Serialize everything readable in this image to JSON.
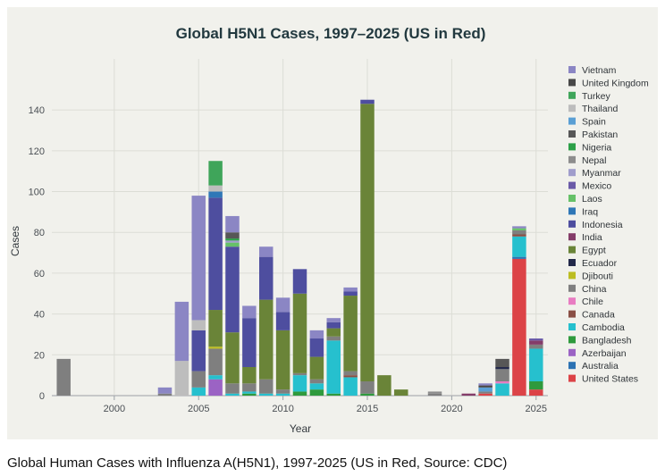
{
  "caption": "Global Human Cases with Influenza A(H5N1), 1997-2025 (US in Red, Source: CDC)",
  "chart_data": {
    "type": "bar",
    "stacked": true,
    "title": "Global H5N1 Cases, 1997–2025 (US in Red)",
    "xlabel": "Year",
    "ylabel": "Cases",
    "xlim": [
      1996.3,
      2025.7
    ],
    "ylim": [
      0,
      165
    ],
    "x_ticks": [
      2000,
      2005,
      2010,
      2015,
      2020,
      2025
    ],
    "y_ticks": [
      0,
      20,
      40,
      60,
      80,
      100,
      120,
      140
    ],
    "grid": true,
    "legend_position": "right",
    "years": [
      1997,
      1998,
      1999,
      2000,
      2001,
      2002,
      2003,
      2004,
      2005,
      2006,
      2007,
      2008,
      2009,
      2010,
      2011,
      2012,
      2013,
      2014,
      2015,
      2016,
      2017,
      2018,
      2019,
      2020,
      2021,
      2022,
      2023,
      2024,
      2025
    ],
    "series": [
      {
        "name": "United States",
        "color": "#dc4347",
        "values": [
          0,
          0,
          0,
          0,
          0,
          0,
          0,
          0,
          0,
          0,
          0,
          0,
          0,
          0,
          0,
          0,
          0,
          0,
          0,
          0,
          0,
          0,
          0,
          0,
          0,
          1,
          0,
          67,
          3
        ]
      },
      {
        "name": "Australia",
        "color": "#2c72b3",
        "values": [
          0,
          0,
          0,
          0,
          0,
          0,
          0,
          0,
          0,
          0,
          0,
          0,
          0,
          0,
          0,
          0,
          0,
          0,
          0,
          0,
          0,
          0,
          0,
          0,
          0,
          0,
          0,
          1,
          0
        ]
      },
      {
        "name": "Azerbaijan",
        "color": "#9b63c4",
        "values": [
          0,
          0,
          0,
          0,
          0,
          0,
          0,
          0,
          0,
          8,
          0,
          0,
          0,
          0,
          0,
          0,
          0,
          0,
          0,
          0,
          0,
          0,
          0,
          0,
          0,
          0,
          0,
          0,
          0
        ]
      },
      {
        "name": "Bangladesh",
        "color": "#2f9a3d",
        "values": [
          0,
          0,
          0,
          0,
          0,
          0,
          0,
          0,
          0,
          0,
          0,
          1,
          0,
          0,
          2,
          3,
          1,
          0,
          1,
          0,
          0,
          0,
          0,
          0,
          0,
          0,
          0,
          0,
          4
        ]
      },
      {
        "name": "Cambodia",
        "color": "#26c0ce",
        "values": [
          0,
          0,
          0,
          0,
          0,
          0,
          0,
          0,
          4,
          2,
          1,
          1,
          1,
          1,
          8,
          3,
          26,
          9,
          0,
          0,
          0,
          0,
          0,
          0,
          0,
          0,
          6,
          10,
          16
        ]
      },
      {
        "name": "Canada",
        "color": "#8a4f45",
        "values": [
          0,
          0,
          0,
          0,
          0,
          0,
          0,
          0,
          0,
          0,
          0,
          0,
          0,
          0,
          0,
          0,
          0,
          1,
          0,
          0,
          0,
          0,
          0,
          0,
          0,
          0,
          0,
          1,
          0
        ]
      },
      {
        "name": "Chile",
        "color": "#e87cc2",
        "values": [
          0,
          0,
          0,
          0,
          0,
          0,
          0,
          0,
          0,
          0,
          0,
          0,
          0,
          0,
          0,
          0,
          0,
          0,
          0,
          0,
          0,
          0,
          0,
          0,
          0,
          0,
          1,
          0,
          0
        ]
      },
      {
        "name": "China",
        "color": "#7f7f7f",
        "values": [
          18,
          0,
          0,
          0,
          0,
          0,
          1,
          0,
          8,
          13,
          5,
          4,
          7,
          2,
          1,
          2,
          2,
          2,
          6,
          0,
          0,
          0,
          1,
          0,
          0,
          1,
          6,
          2,
          2
        ]
      },
      {
        "name": "Djibouti",
        "color": "#bcbd22",
        "values": [
          0,
          0,
          0,
          0,
          0,
          0,
          0,
          0,
          0,
          1,
          0,
          0,
          0,
          0,
          0,
          0,
          0,
          0,
          0,
          0,
          0,
          0,
          0,
          0,
          0,
          0,
          0,
          0,
          0
        ]
      },
      {
        "name": "Ecuador",
        "color": "#23294a",
        "values": [
          0,
          0,
          0,
          0,
          0,
          0,
          0,
          0,
          0,
          0,
          0,
          0,
          0,
          0,
          0,
          0,
          0,
          0,
          0,
          0,
          0,
          0,
          0,
          0,
          0,
          0,
          1,
          0,
          0
        ]
      },
      {
        "name": "Egypt",
        "color": "#6a8438",
        "values": [
          0,
          0,
          0,
          0,
          0,
          0,
          0,
          0,
          0,
          18,
          25,
          8,
          39,
          29,
          39,
          11,
          4,
          37,
          136,
          10,
          3,
          0,
          0,
          0,
          0,
          0,
          0,
          0,
          0
        ]
      },
      {
        "name": "India",
        "color": "#843c69",
        "values": [
          0,
          0,
          0,
          0,
          0,
          0,
          0,
          0,
          0,
          0,
          0,
          0,
          0,
          0,
          0,
          0,
          0,
          0,
          0,
          0,
          0,
          0,
          0,
          0,
          1,
          0,
          0,
          0,
          2
        ]
      },
      {
        "name": "Indonesia",
        "color": "#4e4e9f",
        "values": [
          0,
          0,
          0,
          0,
          0,
          0,
          0,
          0,
          20,
          55,
          42,
          24,
          21,
          9,
          12,
          9,
          3,
          2,
          2,
          0,
          0,
          0,
          0,
          0,
          0,
          0,
          0,
          0,
          0
        ]
      },
      {
        "name": "Iraq",
        "color": "#2f77b7",
        "values": [
          0,
          0,
          0,
          0,
          0,
          0,
          0,
          0,
          0,
          3,
          0,
          0,
          0,
          0,
          0,
          0,
          0,
          0,
          0,
          0,
          0,
          0,
          0,
          0,
          0,
          0,
          0,
          0,
          0
        ]
      },
      {
        "name": "Laos",
        "color": "#66c168",
        "values": [
          0,
          0,
          0,
          0,
          0,
          0,
          0,
          0,
          0,
          0,
          2,
          0,
          0,
          0,
          0,
          0,
          0,
          0,
          0,
          0,
          0,
          0,
          0,
          0,
          0,
          0,
          0,
          1,
          0
        ]
      },
      {
        "name": "Mexico",
        "color": "#6a5aa8",
        "values": [
          0,
          0,
          0,
          0,
          0,
          0,
          0,
          0,
          0,
          0,
          0,
          0,
          0,
          0,
          0,
          0,
          0,
          0,
          0,
          0,
          0,
          0,
          0,
          0,
          0,
          0,
          0,
          0,
          1
        ]
      },
      {
        "name": "Myanmar",
        "color": "#a09dcc",
        "values": [
          0,
          0,
          0,
          0,
          0,
          0,
          0,
          0,
          0,
          0,
          1,
          0,
          0,
          0,
          0,
          0,
          0,
          0,
          0,
          0,
          0,
          0,
          0,
          0,
          0,
          0,
          0,
          0,
          0
        ]
      },
      {
        "name": "Nepal",
        "color": "#8d8d8d",
        "values": [
          0,
          0,
          0,
          0,
          0,
          0,
          0,
          0,
          0,
          0,
          0,
          0,
          0,
          0,
          0,
          0,
          0,
          0,
          0,
          0,
          0,
          0,
          1,
          0,
          0,
          0,
          0,
          0,
          0
        ]
      },
      {
        "name": "Nigeria",
        "color": "#2ca048",
        "values": [
          0,
          0,
          0,
          0,
          0,
          0,
          0,
          0,
          0,
          0,
          1,
          0,
          0,
          0,
          0,
          0,
          0,
          0,
          0,
          0,
          0,
          0,
          0,
          0,
          0,
          0,
          0,
          0,
          0
        ]
      },
      {
        "name": "Pakistan",
        "color": "#575757",
        "values": [
          0,
          0,
          0,
          0,
          0,
          0,
          0,
          0,
          0,
          0,
          3,
          0,
          0,
          0,
          0,
          0,
          0,
          0,
          0,
          0,
          0,
          0,
          0,
          0,
          0,
          0,
          4,
          0,
          0
        ]
      },
      {
        "name": "Spain",
        "color": "#5a9fd4",
        "values": [
          0,
          0,
          0,
          0,
          0,
          0,
          0,
          0,
          0,
          0,
          0,
          0,
          0,
          0,
          0,
          0,
          0,
          0,
          0,
          0,
          0,
          0,
          0,
          0,
          0,
          2,
          0,
          0,
          0
        ]
      },
      {
        "name": "Thailand",
        "color": "#bdbdbd",
        "values": [
          0,
          0,
          0,
          0,
          0,
          0,
          0,
          17,
          5,
          3,
          0,
          0,
          0,
          0,
          0,
          0,
          0,
          0,
          0,
          0,
          0,
          0,
          0,
          0,
          0,
          0,
          0,
          0,
          0
        ]
      },
      {
        "name": "Turkey",
        "color": "#3fa55a",
        "values": [
          0,
          0,
          0,
          0,
          0,
          0,
          0,
          0,
          0,
          12,
          0,
          0,
          0,
          0,
          0,
          0,
          0,
          0,
          0,
          0,
          0,
          0,
          0,
          0,
          0,
          0,
          0,
          0,
          0
        ]
      },
      {
        "name": "United Kingdom",
        "color": "#484848",
        "values": [
          0,
          0,
          0,
          0,
          0,
          0,
          0,
          0,
          0,
          0,
          0,
          0,
          0,
          0,
          0,
          0,
          0,
          0,
          0,
          0,
          0,
          0,
          0,
          0,
          0,
          1,
          0,
          0,
          0
        ]
      },
      {
        "name": "Vietnam",
        "color": "#8b86c4",
        "values": [
          0,
          0,
          0,
          0,
          0,
          0,
          3,
          29,
          61,
          0,
          8,
          6,
          5,
          7,
          0,
          4,
          2,
          2,
          0,
          0,
          0,
          0,
          0,
          0,
          0,
          1,
          0,
          1,
          0
        ]
      }
    ],
    "legend_order": [
      "Vietnam",
      "United Kingdom",
      "Turkey",
      "Thailand",
      "Spain",
      "Pakistan",
      "Nigeria",
      "Nepal",
      "Myanmar",
      "Mexico",
      "Laos",
      "Iraq",
      "Indonesia",
      "India",
      "Egypt",
      "Ecuador",
      "Djibouti",
      "China",
      "Chile",
      "Canada",
      "Cambodia",
      "Bangladesh",
      "Azerbaijan",
      "Australia",
      "United States"
    ]
  }
}
